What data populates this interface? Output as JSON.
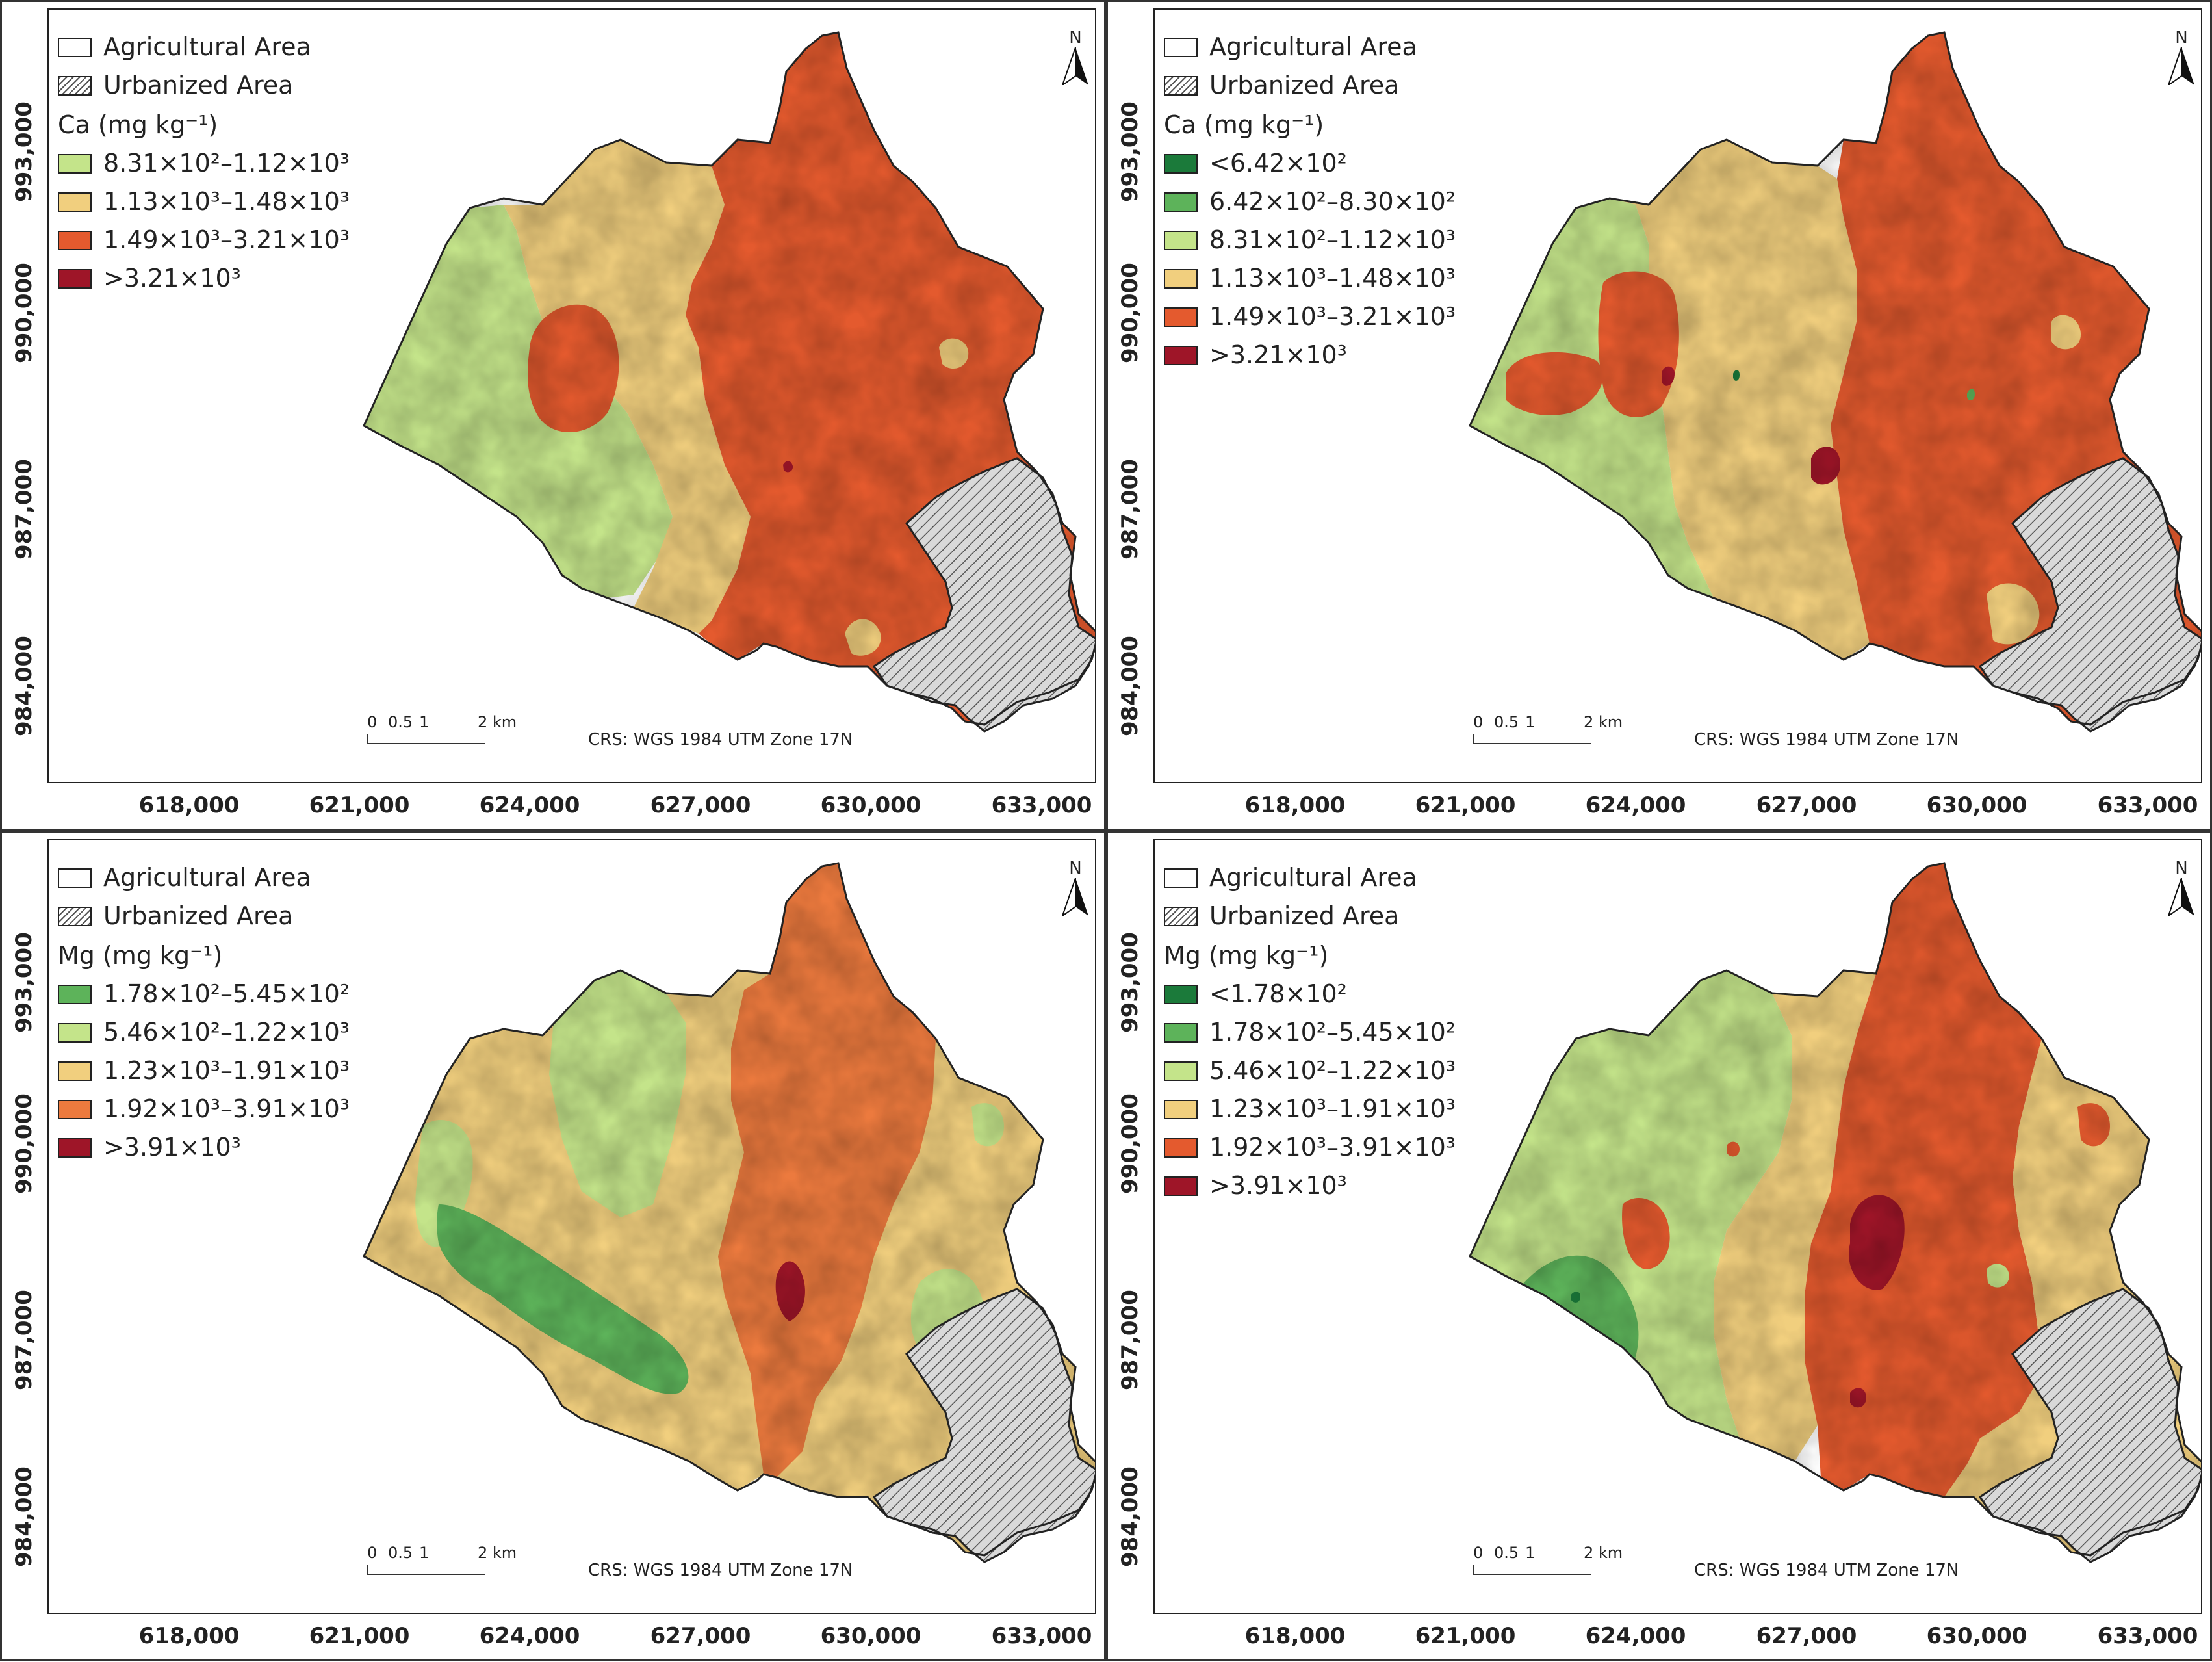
{
  "legend_common": {
    "agricultural": "Agricultural Area",
    "urbanized": "Urbanized Area"
  },
  "panels": [
    {
      "title": "Ca (mg kg⁻¹)",
      "classes": [
        {
          "label": "8.31×10²–1.12×10³",
          "color": "#c4e48a"
        },
        {
          "label": "1.13×10³–1.48×10³",
          "color": "#f1cf7e"
        },
        {
          "label": "1.49×10³–3.21×10³",
          "color": "#e45a2e"
        },
        {
          "label": ">3.21×10³",
          "color": "#9e1528"
        }
      ]
    },
    {
      "title": "Ca (mg kg⁻¹)",
      "classes": [
        {
          "label": "<6.42×10²",
          "color": "#1b7a3a"
        },
        {
          "label": "6.42×10²–8.30×10²",
          "color": "#5db35a"
        },
        {
          "label": "8.31×10²–1.12×10³",
          "color": "#c4e48a"
        },
        {
          "label": "1.13×10³–1.48×10³",
          "color": "#f1cf7e"
        },
        {
          "label": "1.49×10³–3.21×10³",
          "color": "#e45a2e"
        },
        {
          "label": ">3.21×10³",
          "color": "#9e1528"
        }
      ]
    },
    {
      "title": "Mg (mg kg⁻¹)",
      "classes": [
        {
          "label": "1.78×10²–5.45×10²",
          "color": "#5db35a"
        },
        {
          "label": "5.46×10²–1.22×10³",
          "color": "#c4e48a"
        },
        {
          "label": "1.23×10³–1.91×10³",
          "color": "#f1cf7e"
        },
        {
          "label": "1.92×10³–3.91×10³",
          "color": "#ec7a3e"
        },
        {
          "label": ">3.91×10³",
          "color": "#9e1528"
        }
      ]
    },
    {
      "title": "Mg (mg kg⁻¹)",
      "classes": [
        {
          "label": "<1.78×10²",
          "color": "#1b7a3a"
        },
        {
          "label": "1.78×10²–5.45×10²",
          "color": "#5db35a"
        },
        {
          "label": "5.46×10²–1.22×10³",
          "color": "#c4e48a"
        },
        {
          "label": "1.23×10³–1.91×10³",
          "color": "#f1cf7e"
        },
        {
          "label": "1.92×10³–3.91×10³",
          "color": "#e45a2e"
        },
        {
          "label": ">3.91×10³",
          "color": "#9e1528"
        }
      ]
    }
  ],
  "x_ticks": [
    "618,000",
    "621,000",
    "624,000",
    "627,000",
    "630,000",
    "633,000"
  ],
  "y_ticks": [
    "993,000",
    "990,000",
    "987,000",
    "984,000"
  ],
  "north_label": "N",
  "scale": {
    "labels": [
      "0",
      "0.5",
      "1",
      "2 km"
    ]
  },
  "crs": "CRS: WGS 1984 UTM Zone 17N"
}
